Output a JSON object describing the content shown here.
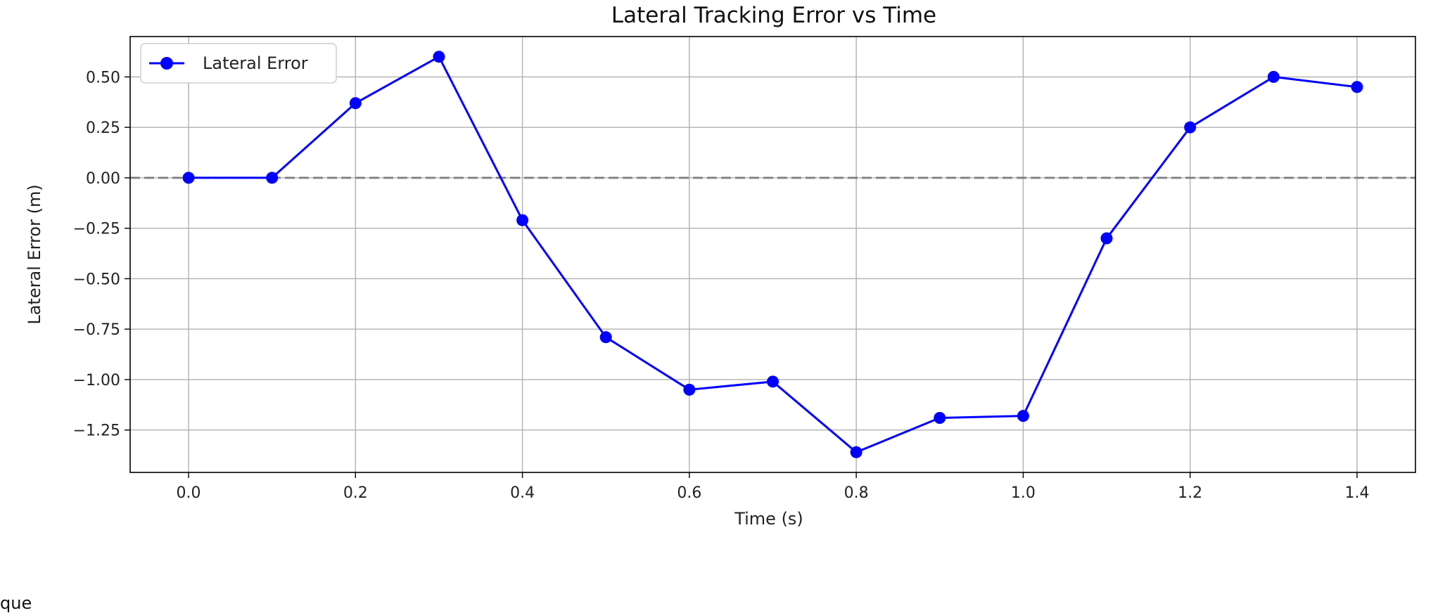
{
  "chart_data": {
    "type": "line",
    "title": "Lateral Tracking Error vs Time",
    "xlabel": "Time (s)",
    "ylabel": "Lateral Error (m)",
    "xlim": [
      -0.07,
      1.47
    ],
    "ylim": [
      -1.46,
      0.7
    ],
    "xticks": [
      0.0,
      0.2,
      0.4,
      0.6,
      0.8,
      1.0,
      1.2,
      1.4
    ],
    "xtick_labels": [
      "0.0",
      "0.2",
      "0.4",
      "0.6",
      "0.8",
      "1.0",
      "1.2",
      "1.4"
    ],
    "yticks": [
      0.5,
      0.25,
      0.0,
      -0.25,
      -0.5,
      -0.75,
      -1.0,
      -1.25
    ],
    "ytick_labels": [
      "0.50",
      "0.25",
      "0.00",
      "−0.25",
      "−0.50",
      "−0.75",
      "−1.00",
      "−1.25"
    ],
    "grid": true,
    "legend_position": "top-left",
    "reference_line": {
      "y": 0.0,
      "style": "dashed",
      "color": "#808080"
    },
    "series": [
      {
        "name": "Lateral Error",
        "color": "#0000ff",
        "marker": "circle",
        "x": [
          0.0,
          0.1,
          0.2,
          0.3,
          0.4,
          0.5,
          0.6,
          0.7,
          0.8,
          0.9,
          1.0,
          1.1,
          1.2,
          1.3,
          1.4
        ],
        "y": [
          0.0,
          0.0,
          0.37,
          0.6,
          -0.21,
          -0.79,
          -1.05,
          -1.01,
          -1.36,
          -1.19,
          -1.18,
          -0.3,
          0.25,
          0.5,
          0.45
        ]
      }
    ]
  },
  "footer": {
    "text": "que"
  }
}
